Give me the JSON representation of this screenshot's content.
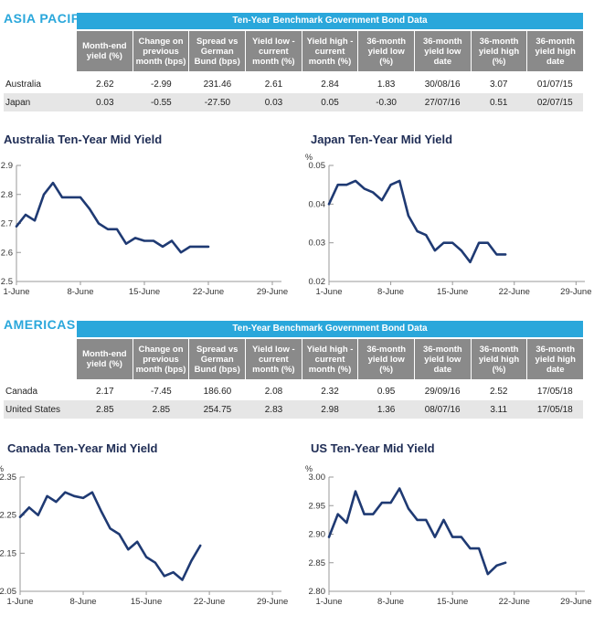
{
  "headers": [
    "Month-end yield (%)",
    "Change on previous month (bps)",
    "Spread vs German Bund (bps)",
    "Yield low - current month (%)",
    "Yield high - current month (%)",
    "36-month yield low (%)",
    "36-month yield low date",
    "36-month yield high (%)",
    "36-month yield high date"
  ],
  "asia": {
    "region": "ASIA PACIFIC",
    "table_title": "Ten-Year Benchmark Government Bond Data",
    "rows": [
      {
        "label": "Australia",
        "values": [
          "2.62",
          "-2.99",
          "231.46",
          "2.61",
          "2.84",
          "1.83",
          "30/08/16",
          "3.07",
          "01/07/15"
        ]
      },
      {
        "label": "Japan",
        "values": [
          "0.03",
          "-0.55",
          "-27.50",
          "0.03",
          "0.05",
          "-0.30",
          "27/07/16",
          "0.51",
          "02/07/15"
        ]
      }
    ]
  },
  "americas": {
    "region": "AMERICAS",
    "table_title": "Ten-Year Benchmark Government Bond Data",
    "rows": [
      {
        "label": "Canada",
        "values": [
          "2.17",
          "-7.45",
          "186.60",
          "2.08",
          "2.32",
          "0.95",
          "29/09/16",
          "2.52",
          "17/05/18"
        ]
      },
      {
        "label": "United States",
        "values": [
          "2.85",
          "2.85",
          "254.75",
          "2.83",
          "2.98",
          "1.36",
          "08/07/16",
          "3.11",
          "17/05/18"
        ]
      }
    ]
  },
  "line_color": "#1f3a73",
  "chart_data": [
    {
      "type": "line",
      "title": "Australia Ten-Year Mid Yield",
      "ylabel": "%",
      "ylim": [
        2.5,
        2.9
      ],
      "yticks": [
        "2.5",
        "2.6",
        "2.7",
        "2.8",
        "2.9"
      ],
      "xlim": [
        1,
        30
      ],
      "xticks": [
        {
          "x": 1,
          "label": "1-June"
        },
        {
          "x": 8,
          "label": "8-June"
        },
        {
          "x": 15,
          "label": "15-June"
        },
        {
          "x": 22,
          "label": "22-June"
        },
        {
          "x": 29,
          "label": "29-June"
        }
      ],
      "series": [
        {
          "x": [
            1,
            2,
            3,
            4,
            5,
            6,
            7,
            8,
            9,
            10,
            11,
            12,
            13,
            14,
            15,
            16,
            17,
            18,
            19,
            20,
            21,
            22,
            23,
            24,
            25,
            26,
            27,
            28
          ],
          "values": [
            2.69,
            2.73,
            2.71,
            2.8,
            2.84,
            2.79,
            2.79,
            2.79,
            2.75,
            2.7,
            2.68,
            2.68,
            2.63,
            2.65,
            2.64,
            2.64,
            2.62,
            2.64,
            2.6,
            2.62,
            2.62,
            2.62,
            null,
            null,
            null,
            null,
            null,
            null
          ]
        }
      ]
    },
    {
      "type": "line",
      "title": "Japan Ten-Year Mid Yield",
      "ylabel": "%",
      "ylim": [
        0.02,
        0.05
      ],
      "yticks": [
        "0.02",
        "0.03",
        "0.04",
        "0.05"
      ],
      "xlim": [
        1,
        30
      ],
      "xticks": [
        {
          "x": 1,
          "label": "1-June"
        },
        {
          "x": 8,
          "label": "8-June"
        },
        {
          "x": 15,
          "label": "15-June"
        },
        {
          "x": 22,
          "label": "22-June"
        },
        {
          "x": 29,
          "label": "29-June"
        }
      ],
      "series": [
        {
          "x": [
            1,
            2,
            3,
            4,
            5,
            6,
            7,
            8,
            9,
            10,
            11,
            12,
            13,
            14,
            15,
            16,
            17,
            18,
            19,
            20,
            21,
            22,
            23
          ],
          "values": [
            0.04,
            0.045,
            0.045,
            0.046,
            0.044,
            0.043,
            0.041,
            0.045,
            0.046,
            0.037,
            0.033,
            0.032,
            0.028,
            0.03,
            0.03,
            0.028,
            0.025,
            0.03,
            0.03,
            0.027,
            0.027,
            null,
            null
          ]
        }
      ]
    },
    {
      "type": "line",
      "title": "Canada Ten-Year Mid Yield",
      "ylabel": "%",
      "ylim": [
        2.05,
        2.35
      ],
      "yticks": [
        "2.05",
        "2.15",
        "2.25",
        "2.35"
      ],
      "xlim": [
        1,
        30
      ],
      "xticks": [
        {
          "x": 1,
          "label": "1-June"
        },
        {
          "x": 8,
          "label": "8-June"
        },
        {
          "x": 15,
          "label": "15-June"
        },
        {
          "x": 22,
          "label": "22-June"
        },
        {
          "x": 29,
          "label": "29-June"
        }
      ],
      "series": [
        {
          "x": [
            1,
            2,
            3,
            4,
            5,
            6,
            7,
            8,
            9,
            10,
            11,
            12,
            13,
            14,
            15,
            16,
            17,
            18,
            19,
            20,
            21,
            22
          ],
          "values": [
            2.245,
            2.27,
            2.25,
            2.3,
            2.285,
            2.31,
            2.3,
            2.295,
            2.31,
            2.26,
            2.215,
            2.2,
            2.16,
            2.18,
            2.14,
            2.125,
            2.09,
            2.1,
            2.08,
            2.13,
            2.17,
            null
          ]
        }
      ]
    },
    {
      "type": "line",
      "title": "US Ten-Year Mid Yield",
      "ylabel": "%",
      "ylim": [
        2.8,
        3.0
      ],
      "yticks": [
        "2.80",
        "2.85",
        "2.90",
        "2.95",
        "3.00"
      ],
      "xlim": [
        1,
        30
      ],
      "xticks": [
        {
          "x": 1,
          "label": "1-June"
        },
        {
          "x": 8,
          "label": "8-June"
        },
        {
          "x": 15,
          "label": "15-June"
        },
        {
          "x": 22,
          "label": "22-June"
        },
        {
          "x": 29,
          "label": "29-June"
        }
      ],
      "series": [
        {
          "x": [
            1,
            2,
            3,
            4,
            5,
            6,
            7,
            8,
            9,
            10,
            11,
            12,
            13,
            14,
            15,
            16,
            17,
            18,
            19,
            20,
            21,
            22,
            23
          ],
          "values": [
            2.895,
            2.935,
            2.92,
            2.975,
            2.935,
            2.935,
            2.955,
            2.955,
            2.98,
            2.945,
            2.925,
            2.925,
            2.895,
            2.925,
            2.895,
            2.895,
            2.875,
            2.875,
            2.83,
            2.845,
            2.85,
            null,
            null
          ]
        }
      ]
    }
  ]
}
